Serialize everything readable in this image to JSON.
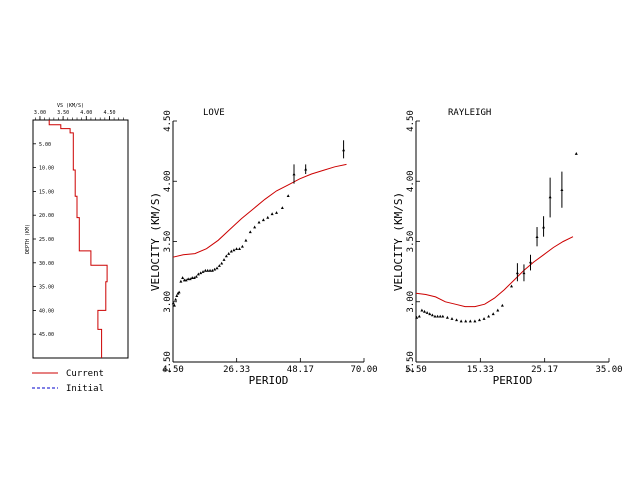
{
  "chart_data": [
    {
      "type": "line",
      "title": "",
      "xlabel": "VS (KM/S)",
      "ylabel": "DEPTH (KM)",
      "x_ticks": [
        "3.00",
        "3.50",
        "4.00",
        "4.50"
      ],
      "y_ticks": [
        "5.00",
        "10.00",
        "15.00",
        "20.00",
        "25.00",
        "30.00",
        "35.00",
        "40.00",
        "45.00"
      ],
      "xlim": [
        2.85,
        4.9
      ],
      "ylim": [
        0,
        50
      ],
      "y_inverted": true,
      "series": [
        {
          "name": "Current",
          "color": "#cc0000",
          "step": true,
          "points": [
            [
              3.2,
              0
            ],
            [
              3.2,
              1
            ],
            [
              3.45,
              1
            ],
            [
              3.45,
              1.8
            ],
            [
              3.65,
              1.8
            ],
            [
              3.65,
              2.7
            ],
            [
              3.72,
              2.7
            ],
            [
              3.72,
              10.5
            ],
            [
              3.76,
              10.5
            ],
            [
              3.76,
              16
            ],
            [
              3.8,
              16
            ],
            [
              3.8,
              20.5
            ],
            [
              3.85,
              20.5
            ],
            [
              3.85,
              27.5
            ],
            [
              4.1,
              27.5
            ],
            [
              4.1,
              30.5
            ],
            [
              4.45,
              30.5
            ],
            [
              4.45,
              34
            ],
            [
              4.42,
              34
            ],
            [
              4.42,
              40
            ],
            [
              4.25,
              40
            ],
            [
              4.25,
              44
            ],
            [
              4.33,
              44
            ],
            [
              4.33,
              50
            ]
          ]
        }
      ]
    },
    {
      "type": "scatter",
      "title": "LOVE",
      "xlabel": "PERIOD",
      "ylabel": "VELOCITY (KM/S)",
      "x_ticks": [
        "4.50",
        "26.33",
        "48.17",
        "70.00"
      ],
      "y_ticks": [
        "2.50",
        "3.00",
        "3.50",
        "4.00",
        "4.50"
      ],
      "xlim": [
        4.5,
        70
      ],
      "ylim": [
        2.5,
        4.5
      ],
      "curve": {
        "color": "#cc0000",
        "points": [
          [
            4.5,
            3.37
          ],
          [
            8,
            3.39
          ],
          [
            12,
            3.4
          ],
          [
            16,
            3.44
          ],
          [
            20,
            3.51
          ],
          [
            24,
            3.6
          ],
          [
            28,
            3.69
          ],
          [
            32,
            3.77
          ],
          [
            36,
            3.85
          ],
          [
            40,
            3.92
          ],
          [
            44,
            3.97
          ],
          [
            48,
            4.02
          ],
          [
            52,
            4.06
          ],
          [
            56,
            4.09
          ],
          [
            60,
            4.12
          ],
          [
            64,
            4.14
          ]
        ]
      },
      "observed": [
        [
          4.6,
          2.99
        ],
        [
          5,
          2.97
        ],
        [
          5.4,
          3.02
        ],
        [
          5.8,
          3.05
        ],
        [
          6.2,
          3.07
        ],
        [
          6.6,
          3.08
        ],
        [
          7.2,
          3.17
        ],
        [
          7.8,
          3.2
        ],
        [
          8.4,
          3.18
        ],
        [
          9,
          3.18
        ],
        [
          9.7,
          3.19
        ],
        [
          10.4,
          3.19
        ],
        [
          11.1,
          3.2
        ],
        [
          11.8,
          3.2
        ],
        [
          12.5,
          3.21
        ],
        [
          13.2,
          3.23
        ],
        [
          14,
          3.24
        ],
        [
          14.8,
          3.25
        ],
        [
          15.6,
          3.26
        ],
        [
          16.4,
          3.26
        ],
        [
          17.2,
          3.26
        ],
        [
          18,
          3.26
        ],
        [
          18.8,
          3.27
        ],
        [
          19.6,
          3.28
        ],
        [
          20.4,
          3.3
        ],
        [
          21.2,
          3.32
        ],
        [
          22,
          3.35
        ],
        [
          22.8,
          3.38
        ],
        [
          23.6,
          3.4
        ],
        [
          24.5,
          3.42
        ],
        [
          25.4,
          3.43
        ],
        [
          26.3,
          3.44
        ],
        [
          27.3,
          3.44
        ],
        [
          28.3,
          3.46
        ],
        [
          29.5,
          3.51
        ],
        [
          31,
          3.58
        ],
        [
          32.5,
          3.62
        ],
        [
          34,
          3.66
        ],
        [
          35.5,
          3.68
        ],
        [
          37,
          3.7
        ],
        [
          38.5,
          3.73
        ],
        [
          40,
          3.74
        ],
        [
          42,
          3.78
        ],
        [
          44,
          3.88
        ],
        [
          46,
          4.06
        ],
        [
          50,
          4.1
        ],
        [
          63,
          4.26
        ]
      ],
      "error_bars": [
        [
          46,
          3.98,
          4.14
        ],
        [
          50,
          4.06,
          4.14
        ],
        [
          63,
          4.19,
          4.34
        ]
      ]
    },
    {
      "type": "scatter",
      "title": "RAYLEIGH",
      "xlabel": "PERIOD",
      "ylabel": "VELOCITY (KM/S)",
      "x_ticks": [
        "5.50",
        "15.33",
        "25.17",
        "35.00"
      ],
      "y_ticks": [
        "2.50",
        "3.00",
        "3.50",
        "4.00",
        "4.50"
      ],
      "xlim": [
        5.5,
        35
      ],
      "ylim": [
        2.5,
        4.5
      ],
      "curve": {
        "color": "#cc0000",
        "points": [
          [
            5.5,
            3.07
          ],
          [
            7,
            3.06
          ],
          [
            8.5,
            3.04
          ],
          [
            10,
            3.0
          ],
          [
            11.5,
            2.98
          ],
          [
            13,
            2.96
          ],
          [
            14.5,
            2.96
          ],
          [
            16,
            2.98
          ],
          [
            17.5,
            3.03
          ],
          [
            19,
            3.1
          ],
          [
            20.5,
            3.18
          ],
          [
            22,
            3.26
          ],
          [
            23.5,
            3.33
          ],
          [
            25,
            3.39
          ],
          [
            26.5,
            3.45
          ],
          [
            28,
            3.5
          ],
          [
            29.5,
            3.54
          ]
        ]
      },
      "observed": [
        [
          5.6,
          2.87
        ],
        [
          6,
          2.88
        ],
        [
          6.4,
          2.93
        ],
        [
          6.8,
          2.92
        ],
        [
          7.2,
          2.91
        ],
        [
          7.6,
          2.9
        ],
        [
          8,
          2.89
        ],
        [
          8.4,
          2.88
        ],
        [
          8.8,
          2.88
        ],
        [
          9.2,
          2.88
        ],
        [
          9.6,
          2.88
        ],
        [
          10.3,
          2.87
        ],
        [
          11,
          2.86
        ],
        [
          11.7,
          2.85
        ],
        [
          12.4,
          2.84
        ],
        [
          13.1,
          2.84
        ],
        [
          13.8,
          2.84
        ],
        [
          14.5,
          2.84
        ],
        [
          15.2,
          2.85
        ],
        [
          15.9,
          2.86
        ],
        [
          16.6,
          2.88
        ],
        [
          17.3,
          2.9
        ],
        [
          18,
          2.93
        ],
        [
          18.7,
          2.97
        ],
        [
          20.1,
          3.13
        ],
        [
          21,
          3.24
        ],
        [
          22,
          3.24
        ],
        [
          23,
          3.33
        ],
        [
          24,
          3.54
        ],
        [
          25,
          3.62
        ],
        [
          26,
          3.87
        ],
        [
          27.8,
          3.93
        ],
        [
          30,
          4.23
        ]
      ],
      "error_bars": [
        [
          21,
          3.17,
          3.32
        ],
        [
          22,
          3.17,
          3.31
        ],
        [
          23,
          3.26,
          3.39
        ],
        [
          24,
          3.46,
          3.62
        ],
        [
          25,
          3.54,
          3.71
        ],
        [
          26,
          3.7,
          4.03
        ],
        [
          27.8,
          3.78,
          4.08
        ]
      ]
    }
  ],
  "legend": [
    {
      "label": "Current",
      "color": "#cc0000",
      "dash": "solid"
    },
    {
      "label": "Initial",
      "color": "#0000cc",
      "dash": "dashed"
    }
  ]
}
